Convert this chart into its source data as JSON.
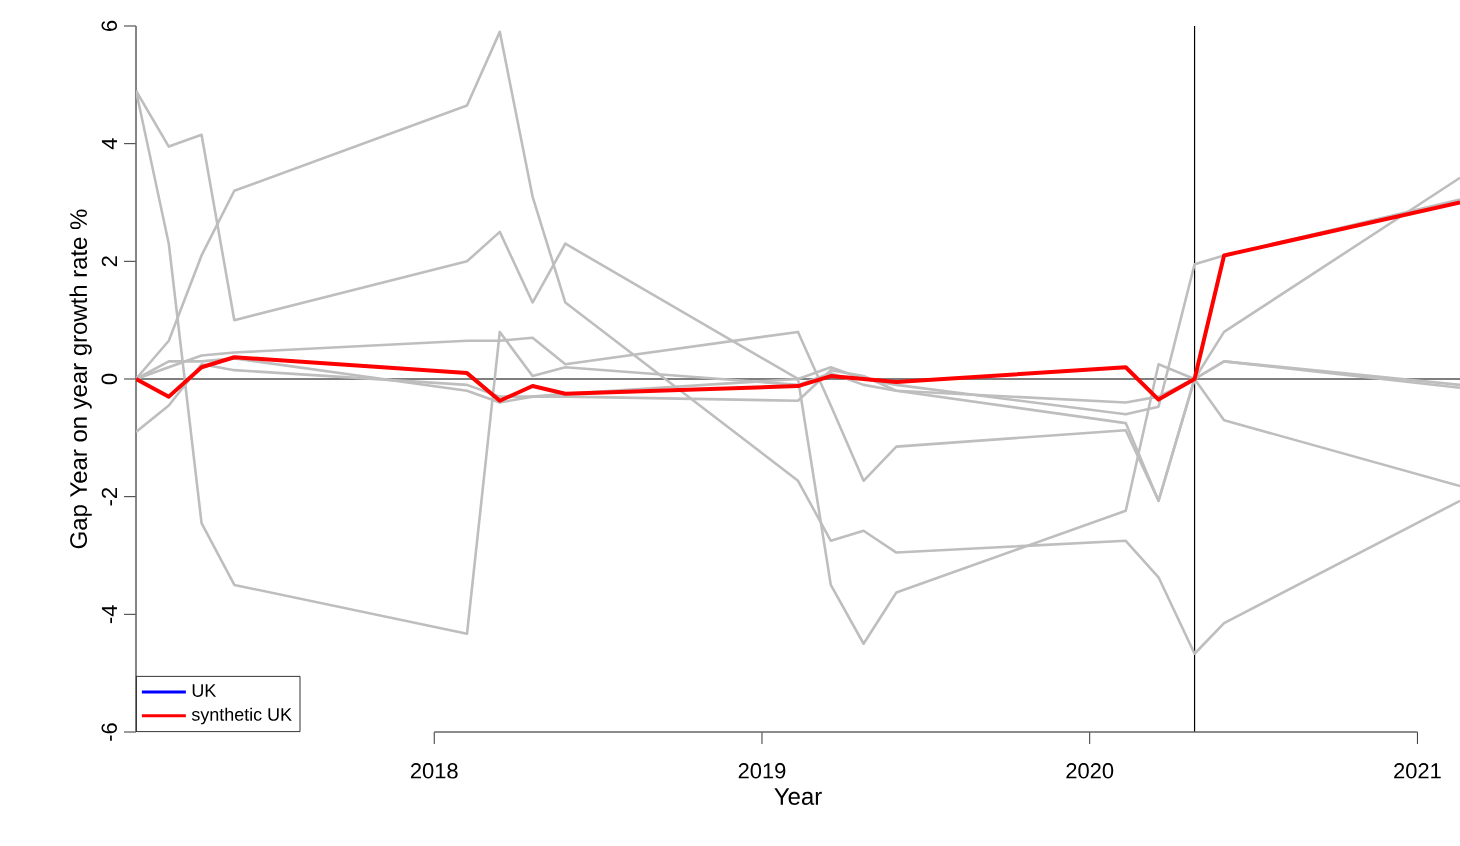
{
  "chart_data": {
    "type": "line",
    "xlabel": "Year",
    "ylabel": "Gap Year on year growth rate %",
    "x": [
      2017.09,
      2017.19,
      2017.29,
      2017.39,
      2018.1,
      2018.2,
      2018.3,
      2018.4,
      2019.11,
      2019.21,
      2019.31,
      2019.41,
      2020.11,
      2020.21,
      2020.32,
      2020.41,
      2021.13
    ],
    "xlim": [
      2017.09,
      2021.13
    ],
    "xticks": [
      2018,
      2019,
      2020,
      2021
    ],
    "ylim": [
      -6,
      6
    ],
    "yticks": [
      -6,
      -4,
      -2,
      0,
      2,
      4,
      6
    ],
    "series": [
      {
        "color": "#bebebe",
        "values": [
          4.9,
          3.95,
          4.15,
          1.0,
          2.0,
          2.5,
          1.3,
          2.3,
          0.0,
          0.2,
          0.0,
          -0.1,
          -0.6,
          -0.47,
          1.95,
          2.1,
          3.05
        ]
      },
      {
        "color": "#bebebe",
        "values": [
          4.9,
          2.3,
          -2.45,
          -3.5,
          -4.33,
          0.8,
          0.05,
          0.2,
          -0.1,
          0.1,
          -0.1,
          -0.2,
          -0.4,
          -0.3,
          0,
          0.3,
          -0.15
        ]
      },
      {
        "color": "#bebebe",
        "values": [
          0,
          0.65,
          2.1,
          3.2,
          4.65,
          5.9,
          3.1,
          1.3,
          -1.73,
          -2.75,
          -2.58,
          -2.95,
          -2.75,
          -3.37,
          -4.67,
          -4.15,
          -2.07
        ]
      },
      {
        "color": "#bebebe",
        "values": [
          0,
          0.2,
          0.4,
          0.45,
          0.65,
          0.65,
          0.7,
          0.25,
          0.8,
          -0.45,
          -1.73,
          -1.15,
          -0.87,
          -2.07,
          0,
          0.8,
          3.42
        ]
      },
      {
        "color": "#bebebe",
        "values": [
          -0.9,
          -0.45,
          0.25,
          0.15,
          -0.1,
          -0.3,
          -0.3,
          -0.3,
          -0.37,
          0.15,
          0.05,
          -0.2,
          -0.75,
          -2.07,
          0,
          -0.7,
          -1.82
        ]
      },
      {
        "color": "#bebebe",
        "values": [
          0,
          0.3,
          0.3,
          0.35,
          -0.2,
          -0.4,
          -0.3,
          -0.25,
          0,
          -3.5,
          -4.5,
          -3.63,
          -2.24,
          0.25,
          0,
          0.3,
          -0.1
        ]
      },
      {
        "name": "UK",
        "color": "#0000ff",
        "values": [
          null,
          null,
          null,
          null,
          null,
          null,
          null,
          null,
          null,
          null,
          null,
          null,
          null,
          null,
          null,
          null,
          null
        ]
      },
      {
        "name": "synthetic UK",
        "color": "#ff0000",
        "values": [
          0,
          -0.3,
          0.2,
          0.37,
          0.1,
          -0.37,
          -0.12,
          -0.25,
          -0.12,
          0.05,
          0.0,
          -0.05,
          0.2,
          -0.35,
          0,
          2.1,
          3.0
        ]
      }
    ],
    "ref_lines": [
      {
        "axis": "y",
        "value": 0,
        "color": "#000000"
      },
      {
        "axis": "x",
        "value": 2020.32,
        "color": "#000000"
      }
    ],
    "grid": false,
    "legend": "bottom left",
    "marker": "none",
    "line_style": "solid"
  }
}
